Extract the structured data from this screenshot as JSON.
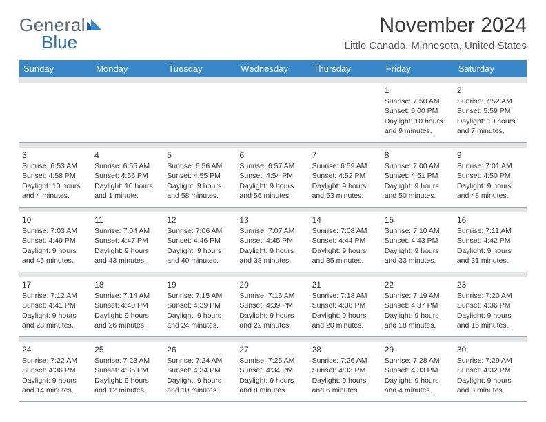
{
  "brand": {
    "part1": "General",
    "part2": "Blue"
  },
  "title": "November 2024",
  "location": "Little Canada, Minnesota, United States",
  "colors": {
    "header_bg": "#3a87c8",
    "header_text": "#ffffff",
    "weeknum_bg": "#e5e5e5",
    "border": "#9aa7b5",
    "text": "#333333",
    "brand_gray": "#5a6670",
    "brand_blue": "#2f6fa7"
  },
  "weekday_labels": [
    "Sunday",
    "Monday",
    "Tuesday",
    "Wednesday",
    "Thursday",
    "Friday",
    "Saturday"
  ],
  "weeks": [
    [
      null,
      null,
      null,
      null,
      null,
      {
        "n": "1",
        "sunrise": "7:50 AM",
        "sunset": "6:00 PM",
        "daylight": "10 hours and 9 minutes."
      },
      {
        "n": "2",
        "sunrise": "7:52 AM",
        "sunset": "5:59 PM",
        "daylight": "10 hours and 7 minutes."
      }
    ],
    [
      {
        "n": "3",
        "sunrise": "6:53 AM",
        "sunset": "4:58 PM",
        "daylight": "10 hours and 4 minutes."
      },
      {
        "n": "4",
        "sunrise": "6:55 AM",
        "sunset": "4:56 PM",
        "daylight": "10 hours and 1 minute."
      },
      {
        "n": "5",
        "sunrise": "6:56 AM",
        "sunset": "4:55 PM",
        "daylight": "9 hours and 58 minutes."
      },
      {
        "n": "6",
        "sunrise": "6:57 AM",
        "sunset": "4:54 PM",
        "daylight": "9 hours and 56 minutes."
      },
      {
        "n": "7",
        "sunrise": "6:59 AM",
        "sunset": "4:52 PM",
        "daylight": "9 hours and 53 minutes."
      },
      {
        "n": "8",
        "sunrise": "7:00 AM",
        "sunset": "4:51 PM",
        "daylight": "9 hours and 50 minutes."
      },
      {
        "n": "9",
        "sunrise": "7:01 AM",
        "sunset": "4:50 PM",
        "daylight": "9 hours and 48 minutes."
      }
    ],
    [
      {
        "n": "10",
        "sunrise": "7:03 AM",
        "sunset": "4:49 PM",
        "daylight": "9 hours and 45 minutes."
      },
      {
        "n": "11",
        "sunrise": "7:04 AM",
        "sunset": "4:47 PM",
        "daylight": "9 hours and 43 minutes."
      },
      {
        "n": "12",
        "sunrise": "7:06 AM",
        "sunset": "4:46 PM",
        "daylight": "9 hours and 40 minutes."
      },
      {
        "n": "13",
        "sunrise": "7:07 AM",
        "sunset": "4:45 PM",
        "daylight": "9 hours and 38 minutes."
      },
      {
        "n": "14",
        "sunrise": "7:08 AM",
        "sunset": "4:44 PM",
        "daylight": "9 hours and 35 minutes."
      },
      {
        "n": "15",
        "sunrise": "7:10 AM",
        "sunset": "4:43 PM",
        "daylight": "9 hours and 33 minutes."
      },
      {
        "n": "16",
        "sunrise": "7:11 AM",
        "sunset": "4:42 PM",
        "daylight": "9 hours and 31 minutes."
      }
    ],
    [
      {
        "n": "17",
        "sunrise": "7:12 AM",
        "sunset": "4:41 PM",
        "daylight": "9 hours and 28 minutes."
      },
      {
        "n": "18",
        "sunrise": "7:14 AM",
        "sunset": "4:40 PM",
        "daylight": "9 hours and 26 minutes."
      },
      {
        "n": "19",
        "sunrise": "7:15 AM",
        "sunset": "4:39 PM",
        "daylight": "9 hours and 24 minutes."
      },
      {
        "n": "20",
        "sunrise": "7:16 AM",
        "sunset": "4:39 PM",
        "daylight": "9 hours and 22 minutes."
      },
      {
        "n": "21",
        "sunrise": "7:18 AM",
        "sunset": "4:38 PM",
        "daylight": "9 hours and 20 minutes."
      },
      {
        "n": "22",
        "sunrise": "7:19 AM",
        "sunset": "4:37 PM",
        "daylight": "9 hours and 18 minutes."
      },
      {
        "n": "23",
        "sunrise": "7:20 AM",
        "sunset": "4:36 PM",
        "daylight": "9 hours and 15 minutes."
      }
    ],
    [
      {
        "n": "24",
        "sunrise": "7:22 AM",
        "sunset": "4:36 PM",
        "daylight": "9 hours and 14 minutes."
      },
      {
        "n": "25",
        "sunrise": "7:23 AM",
        "sunset": "4:35 PM",
        "daylight": "9 hours and 12 minutes."
      },
      {
        "n": "26",
        "sunrise": "7:24 AM",
        "sunset": "4:34 PM",
        "daylight": "9 hours and 10 minutes."
      },
      {
        "n": "27",
        "sunrise": "7:25 AM",
        "sunset": "4:34 PM",
        "daylight": "9 hours and 8 minutes."
      },
      {
        "n": "28",
        "sunrise": "7:26 AM",
        "sunset": "4:33 PM",
        "daylight": "9 hours and 6 minutes."
      },
      {
        "n": "29",
        "sunrise": "7:28 AM",
        "sunset": "4:33 PM",
        "daylight": "9 hours and 4 minutes."
      },
      {
        "n": "30",
        "sunrise": "7:29 AM",
        "sunset": "4:32 PM",
        "daylight": "9 hours and 3 minutes."
      }
    ]
  ],
  "labels": {
    "sunrise_prefix": "Sunrise: ",
    "sunset_prefix": "Sunset: ",
    "daylight_prefix": "Daylight: "
  }
}
